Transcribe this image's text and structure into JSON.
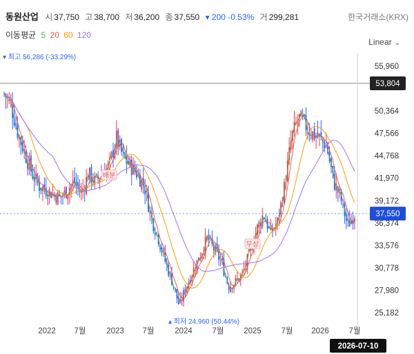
{
  "header": {
    "name": "동원산업",
    "open_label": "시",
    "open": "37,750",
    "high_label": "고",
    "high": "38,700",
    "low_label": "저",
    "low": "36,200",
    "close_label": "종",
    "close": "37,550",
    "change": "▾ 200 -0.53%",
    "volume_label": "거",
    "volume": "299,281",
    "exchange": "한국거래소(KRX)"
  },
  "ma_legend": {
    "label": "이동평균",
    "periods": [
      {
        "text": "5",
        "color": "#4caf50"
      },
      {
        "text": "20",
        "color": "#f05454"
      },
      {
        "text": "60",
        "color": "#ff9800"
      },
      {
        "text": "120",
        "color": "#9c6bff"
      }
    ]
  },
  "scale_mode": "Linear",
  "chart_data": {
    "type": "candlestick",
    "x_ticks": [
      "2022",
      "7월",
      "2023",
      "7월",
      "2024",
      "7월",
      "2025",
      "7월",
      "2026",
      "7월"
    ],
    "y_ticks": [
      55960,
      53804,
      50364,
      47566,
      44768,
      41970,
      39172,
      36374,
      33576,
      30778,
      27980,
      25182
    ],
    "y_tick_labels": [
      "55,960",
      "53,804",
      "50,364",
      "47,566",
      "44,768",
      "41,970",
      "39,172",
      "36,374",
      "33,576",
      "30,778",
      "27,980",
      "25,182"
    ],
    "ylim": [
      24500,
      57500
    ],
    "crosshair_value": "53,804",
    "last_price_label": "37,550",
    "last_price": 37550,
    "date_label": "2026-07-10",
    "high_marker": {
      "text": "최고 56,286 (-33.29%)",
      "value": 56286
    },
    "low_marker": {
      "text": "최저 24,960 (50.44%)",
      "value": 24960
    },
    "annotations": [
      {
        "text": "배분"
      },
      {
        "text": "무상"
      }
    ],
    "colors": {
      "up": "#f23645",
      "down": "#2962ff",
      "ma5": "#4caf50",
      "ma20": "#f05454",
      "ma60": "#ff9800",
      "ma120": "#9c6bff"
    },
    "price_path": [
      [
        0,
        52500
      ],
      [
        0.02,
        51000
      ],
      [
        0.04,
        47500
      ],
      [
        0.06,
        45000
      ],
      [
        0.08,
        42500
      ],
      [
        0.1,
        41000
      ],
      [
        0.12,
        40500
      ],
      [
        0.14,
        40000
      ],
      [
        0.16,
        39500
      ],
      [
        0.18,
        40500
      ],
      [
        0.2,
        41500
      ],
      [
        0.22,
        40000
      ],
      [
        0.24,
        42500
      ],
      [
        0.26,
        41500
      ],
      [
        0.28,
        42500
      ],
      [
        0.3,
        43500
      ],
      [
        0.32,
        47000
      ],
      [
        0.34,
        44500
      ],
      [
        0.36,
        43500
      ],
      [
        0.38,
        42500
      ],
      [
        0.4,
        41000
      ],
      [
        0.42,
        37000
      ],
      [
        0.44,
        34500
      ],
      [
        0.46,
        31500
      ],
      [
        0.48,
        29000
      ],
      [
        0.5,
        26000
      ],
      [
        0.52,
        28500
      ],
      [
        0.54,
        30500
      ],
      [
        0.56,
        32500
      ],
      [
        0.58,
        34500
      ],
      [
        0.6,
        33000
      ],
      [
        0.62,
        31500
      ],
      [
        0.64,
        28500
      ],
      [
        0.66,
        29000
      ],
      [
        0.68,
        30000
      ],
      [
        0.7,
        32500
      ],
      [
        0.72,
        35500
      ],
      [
        0.74,
        37500
      ],
      [
        0.76,
        35000
      ],
      [
        0.78,
        36500
      ],
      [
        0.8,
        41000
      ],
      [
        0.82,
        47000
      ],
      [
        0.84,
        49500
      ],
      [
        0.86,
        48500
      ],
      [
        0.88,
        47500
      ],
      [
        0.9,
        47000
      ],
      [
        0.92,
        46000
      ],
      [
        0.94,
        41500
      ],
      [
        0.96,
        39500
      ],
      [
        0.98,
        36000
      ],
      [
        1.0,
        37550
      ]
    ]
  }
}
